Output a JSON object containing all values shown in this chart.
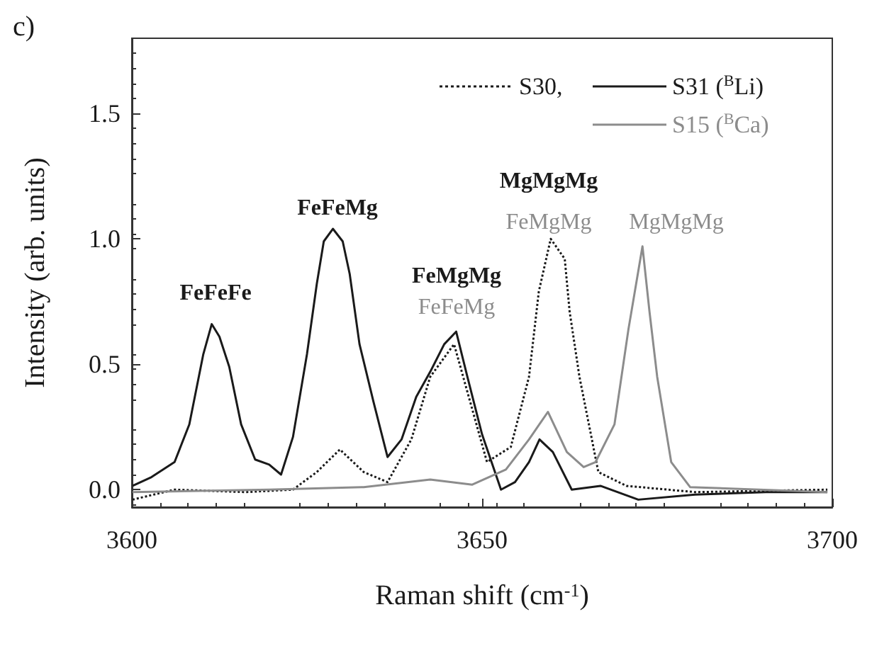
{
  "chart_data": {
    "type": "line",
    "title": "c)",
    "xlabel": "Raman shift (cm$^{-1}$)",
    "ylabel": "Intensity (arb. units)",
    "xlim": [
      3600,
      3700
    ],
    "xticks": [
      3600,
      3650,
      3700
    ],
    "ylim": [
      -0.07,
      1.8
    ],
    "yticks": [
      {
        "value": 0,
        "label": "0.0"
      },
      {
        "value": 0.5,
        "label": "0.5"
      },
      {
        "value": 1,
        "label": "1.0"
      },
      {
        "value": 1.5,
        "label": "1.5"
      }
    ],
    "legend": "top right",
    "marker": "none",
    "grid": false,
    "series": [
      {
        "name": "S30,",
        "color": "#1a1a1a",
        "line_style": "dotted",
        "x": [
          3600.1,
          3606.1,
          3616.3,
          3623.0,
          3626.4,
          3629.7,
          3633.1,
          3636.5,
          3639.9,
          3642.6,
          3646.0,
          3647.9,
          3650.7,
          3654.1,
          3656.7,
          3658.1,
          3659.8,
          3661.8,
          3662.5,
          3663.9,
          3666.6,
          3670.6,
          3680.4,
          3699.3
        ],
        "values": [
          -0.04,
          0.0,
          -0.01,
          0.0,
          0.07,
          0.16,
          0.07,
          0.03,
          0.2,
          0.45,
          0.58,
          0.39,
          0.11,
          0.17,
          0.45,
          0.79,
          1.0,
          0.92,
          0.71,
          0.45,
          0.07,
          0.015,
          -0.01,
          0.0
        ]
      },
      {
        "name": "S31 ($^{B}$Li)",
        "color": "#1a1a1a",
        "line_style": "solid",
        "x": [
          3600.1,
          3602.8,
          3606.1,
          3608.2,
          3610.2,
          3611.4,
          3612.5,
          3613.9,
          3615.6,
          3617.6,
          3619.6,
          3621.3,
          3623.0,
          3625.0,
          3626.4,
          3627.4,
          3628.7,
          3630.1,
          3631.1,
          3632.5,
          3634.5,
          3636.5,
          3638.5,
          3640.6,
          3642.6,
          3644.6,
          3646.3,
          3647.9,
          3650.0,
          3652.7,
          3654.7,
          3656.7,
          3658.2,
          3660.1,
          3662.8,
          3666.9,
          3672.3,
          3680.4,
          3690.5,
          3699.3
        ],
        "values": [
          0.015,
          0.05,
          0.11,
          0.26,
          0.54,
          0.66,
          0.61,
          0.49,
          0.26,
          0.12,
          0.1,
          0.06,
          0.21,
          0.54,
          0.82,
          0.99,
          1.04,
          0.99,
          0.86,
          0.58,
          0.35,
          0.13,
          0.2,
          0.37,
          0.47,
          0.58,
          0.63,
          0.45,
          0.22,
          0.0,
          0.03,
          0.11,
          0.2,
          0.15,
          0.0,
          0.015,
          -0.04,
          -0.02,
          -0.01,
          -0.01
        ]
      },
      {
        "name": "S15 ($^{B}$Ca)",
        "color": "#8c8c8c",
        "line_style": "solid",
        "x": [
          3600.1,
          3619.6,
          3633.1,
          3642.6,
          3648.6,
          3653.4,
          3656.7,
          3659.4,
          3662.1,
          3664.5,
          3666.2,
          3668.9,
          3670.9,
          3672.9,
          3673.9,
          3675.0,
          3677.0,
          3679.7,
          3699.3
        ],
        "values": [
          -0.01,
          0.0,
          0.01,
          0.04,
          0.02,
          0.08,
          0.2,
          0.31,
          0.15,
          0.09,
          0.11,
          0.26,
          0.64,
          0.97,
          0.71,
          0.45,
          0.11,
          0.01,
          -0.01
        ]
      }
    ],
    "annotations": [
      "FeFeFe",
      "FeFeMg",
      "FeMgMg",
      "FeFeMg",
      "MgMgMg",
      "FeMgMg",
      "MgMgMg"
    ]
  }
}
